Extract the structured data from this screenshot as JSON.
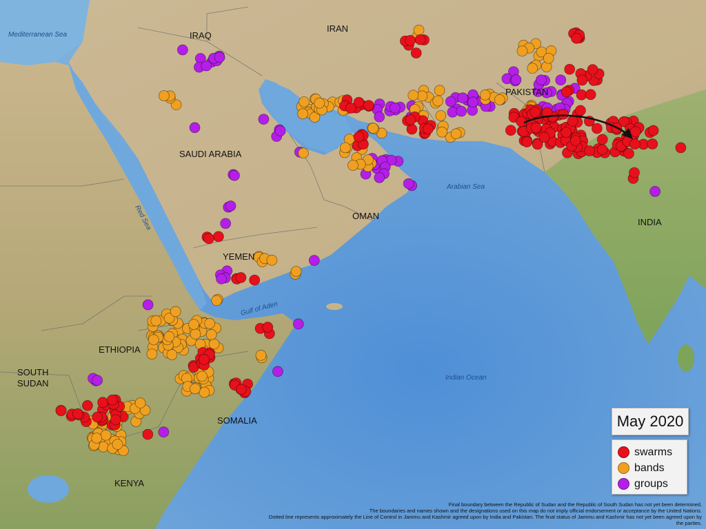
{
  "map": {
    "countries": [
      "IRAQ",
      "IRAN",
      "PAKISTAN",
      "SAUDI ARABIA",
      "OMAN",
      "YEMEN",
      "INDIA",
      "ETHIOPIA",
      "SOUTH",
      "SUDAN",
      "SOMALIA",
      "KENYA"
    ],
    "seas": [
      "Mediterranean Sea",
      "Red Sea",
      "Arabian Sea",
      "Gulf of Aden",
      "Indian Ocean"
    ]
  },
  "title": "May 2020",
  "legend": {
    "items": [
      {
        "label": "swarms",
        "color": "#e8101b"
      },
      {
        "label": "bands",
        "color": "#f0a020"
      },
      {
        "label": "groups",
        "color": "#b41ee8"
      }
    ]
  },
  "disclaimer": [
    "Final boundary between the Republic of Sudan and the Republic of South Sudan has not yet been determined.",
    "The boundaries and names shown and the designations used on this map do not imply official endorsement or acceptance by the United Nations.",
    "Dotted line represents approximately the Line of Control in Jammu and Kashmir agreed upon by India and Pakistan. The final status of Jammu and Kashmir has not yet been agreed upon by the parties."
  ],
  "colors": {
    "sea": "#5a8fc8",
    "land_desert": "#cdbb98",
    "land_green": "#8faa6a",
    "swarm": "#e8101b",
    "band": "#f0a020",
    "group": "#b41ee8"
  }
}
